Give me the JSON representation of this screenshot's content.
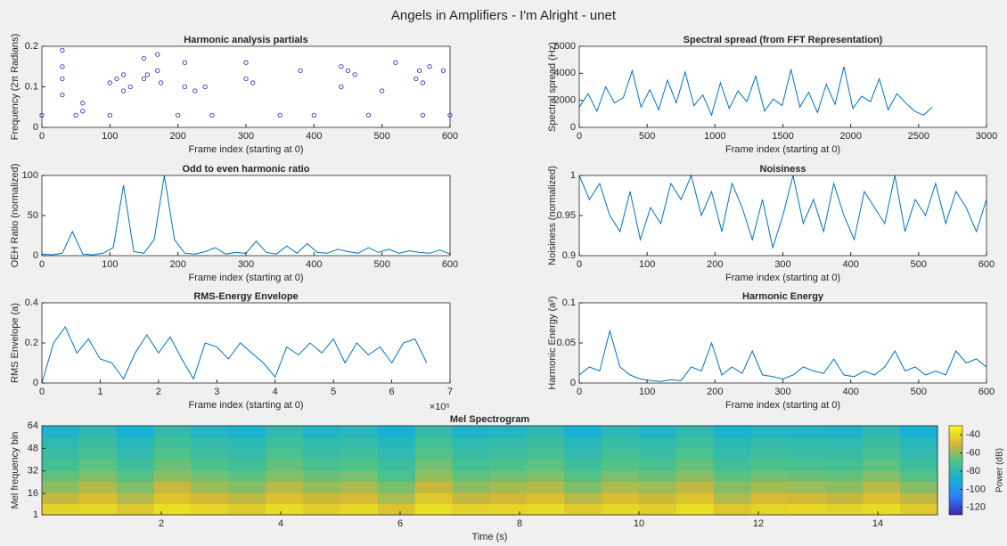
{
  "title": "Angels in Amplifiers - I'm Alright - unet",
  "chart_data": [
    {
      "type": "scatter",
      "title": "Harmonic analysis partials",
      "xlabel": "Frame index (starting at 0)",
      "ylabel": "Frequency (2π Radians)",
      "color": "#3d35c0",
      "x": [
        30,
        30,
        30,
        30,
        60,
        60,
        100,
        110,
        120,
        120,
        130,
        150,
        150,
        155,
        170,
        170,
        175,
        210,
        210,
        225,
        240,
        300,
        300,
        310,
        380,
        440,
        440,
        450,
        460,
        500,
        520,
        550,
        555,
        560,
        570,
        590,
        0,
        50,
        100,
        200,
        250,
        350,
        400,
        480,
        560,
        600
      ],
      "y": [
        0.19,
        0.15,
        0.12,
        0.08,
        0.06,
        0.04,
        0.11,
        0.12,
        0.13,
        0.09,
        0.1,
        0.17,
        0.12,
        0.13,
        0.18,
        0.14,
        0.11,
        0.16,
        0.1,
        0.09,
        0.1,
        0.16,
        0.12,
        0.11,
        0.14,
        0.15,
        0.1,
        0.14,
        0.13,
        0.09,
        0.16,
        0.12,
        0.14,
        0.11,
        0.15,
        0.14,
        0.03,
        0.03,
        0.03,
        0.03,
        0.03,
        0.03,
        0.03,
        0.03,
        0.03,
        0.03
      ],
      "xlim": [
        0,
        600
      ],
      "xticks": [
        0,
        100,
        200,
        300,
        400,
        500,
        600
      ],
      "ylim": [
        0,
        0.2
      ],
      "yticks": [
        0,
        0.1,
        0.2
      ]
    },
    {
      "type": "line",
      "title": "Spectral spread (from FFT Representation)",
      "xlabel": "Frame index (starting at 0)",
      "ylabel": "Spectral spread (Hz)",
      "color": "#0072bd",
      "x": [
        0,
        65,
        130,
        195,
        260,
        325,
        390,
        455,
        520,
        585,
        650,
        715,
        780,
        845,
        910,
        975,
        1040,
        1105,
        1170,
        1235,
        1300,
        1365,
        1430,
        1495,
        1560,
        1625,
        1690,
        1755,
        1820,
        1885,
        1950,
        2015,
        2080,
        2145,
        2210,
        2275,
        2340,
        2405,
        2470,
        2535,
        2600
      ],
      "values": [
        1500,
        2500,
        1200,
        3000,
        1800,
        2200,
        4200,
        1500,
        2800,
        1300,
        3500,
        1800,
        4100,
        1600,
        2400,
        900,
        3300,
        1400,
        2700,
        1900,
        3800,
        1200,
        2100,
        1600,
        4300,
        1500,
        2600,
        1100,
        3200,
        1700,
        4500,
        1400,
        2300,
        1900,
        3600,
        1300,
        2500,
        1800,
        1200,
        900,
        1500
      ],
      "xlim": [
        0,
        3000
      ],
      "xticks": [
        0,
        500,
        1000,
        1500,
        2000,
        2500,
        3000
      ],
      "ylim": [
        0,
        6000
      ],
      "yticks": [
        0,
        2000,
        4000,
        6000
      ]
    },
    {
      "type": "line",
      "title": "Odd to even harmonic ratio",
      "xlabel": "Frame index (starting at 0)",
      "ylabel": "OEH Ratio (normalized)",
      "color": "#0072bd",
      "x": [
        0,
        15,
        30,
        45,
        60,
        75,
        90,
        105,
        120,
        135,
        150,
        165,
        180,
        195,
        210,
        225,
        240,
        255,
        270,
        285,
        300,
        315,
        330,
        345,
        360,
        375,
        390,
        405,
        420,
        435,
        450,
        465,
        480,
        495,
        510,
        525,
        540,
        555,
        570,
        585,
        600
      ],
      "values": [
        2,
        1,
        3,
        30,
        2,
        1,
        3,
        10,
        88,
        5,
        3,
        20,
        100,
        20,
        3,
        2,
        5,
        10,
        2,
        4,
        3,
        18,
        4,
        2,
        12,
        3,
        15,
        4,
        3,
        8,
        5,
        3,
        10,
        4,
        8,
        3,
        6,
        4,
        3,
        7,
        2
      ],
      "xlim": [
        0,
        600
      ],
      "xticks": [
        0,
        100,
        200,
        300,
        400,
        500,
        600
      ],
      "ylim": [
        0,
        100
      ],
      "yticks": [
        0,
        50,
        100
      ]
    },
    {
      "type": "line",
      "title": "Noisiness",
      "xlabel": "Frame index (starting at 0)",
      "ylabel": "Noisiness (normalized)",
      "color": "#0072bd",
      "x": [
        0,
        15,
        30,
        45,
        60,
        75,
        90,
        105,
        120,
        135,
        150,
        165,
        180,
        195,
        210,
        225,
        240,
        255,
        270,
        285,
        300,
        315,
        330,
        345,
        360,
        375,
        390,
        405,
        420,
        435,
        450,
        465,
        480,
        495,
        510,
        525,
        540,
        555,
        570,
        585,
        600
      ],
      "values": [
        1,
        0.97,
        0.99,
        0.95,
        0.93,
        0.98,
        0.92,
        0.96,
        0.94,
        0.99,
        0.97,
        1,
        0.95,
        0.98,
        0.93,
        0.99,
        0.96,
        0.92,
        0.97,
        0.91,
        0.95,
        1,
        0.94,
        0.97,
        0.93,
        0.99,
        0.95,
        0.92,
        0.98,
        0.96,
        0.94,
        1,
        0.93,
        0.97,
        0.95,
        0.99,
        0.94,
        0.98,
        0.96,
        0.93,
        0.97
      ],
      "xlim": [
        0,
        600
      ],
      "xticks": [
        0,
        100,
        200,
        300,
        400,
        500,
        600
      ],
      "ylim": [
        0.9,
        1
      ],
      "yticks": [
        0.9,
        0.95,
        1
      ]
    },
    {
      "type": "line",
      "title": "RMS-Energy Envelope",
      "xlabel": "Frame index (starting at 0)",
      "ylabel": "RMS Envelope (a)",
      "x_multiplier": "×10⁵",
      "color": "#0072bd",
      "x": [
        0,
        0.2,
        0.4,
        0.6,
        0.8,
        1.0,
        1.2,
        1.4,
        1.6,
        1.8,
        2.0,
        2.2,
        2.4,
        2.6,
        2.8,
        3.0,
        3.2,
        3.4,
        3.6,
        3.8,
        4.0,
        4.2,
        4.4,
        4.6,
        4.8,
        5.0,
        5.2,
        5.4,
        5.6,
        5.8,
        6.0,
        6.2,
        6.4,
        6.6
      ],
      "values": [
        0,
        0.2,
        0.28,
        0.15,
        0.22,
        0.12,
        0.1,
        0.02,
        0.15,
        0.24,
        0.15,
        0.23,
        0.12,
        0.02,
        0.2,
        0.18,
        0.12,
        0.2,
        0.15,
        0.1,
        0.03,
        0.18,
        0.14,
        0.2,
        0.15,
        0.22,
        0.1,
        0.2,
        0.14,
        0.18,
        0.1,
        0.2,
        0.22,
        0.1
      ],
      "xlim": [
        0,
        7
      ],
      "xticks": [
        0,
        1,
        2,
        3,
        4,
        5,
        6,
        7
      ],
      "ylim": [
        0,
        0.4
      ],
      "yticks": [
        0,
        0.2,
        0.4
      ]
    },
    {
      "type": "line",
      "title": "Harmonic Energy",
      "xlabel": "Frame index (starting at 0)",
      "ylabel": "Harmonic Energy (a²)",
      "color": "#0072bd",
      "x": [
        0,
        15,
        30,
        45,
        60,
        75,
        90,
        105,
        120,
        135,
        150,
        165,
        180,
        195,
        210,
        225,
        240,
        255,
        270,
        285,
        300,
        315,
        330,
        345,
        360,
        375,
        390,
        405,
        420,
        435,
        450,
        465,
        480,
        495,
        510,
        525,
        540,
        555,
        570,
        585,
        600
      ],
      "values": [
        0.01,
        0.02,
        0.015,
        0.065,
        0.02,
        0.01,
        0.005,
        0.003,
        0.002,
        0.004,
        0.003,
        0.02,
        0.015,
        0.05,
        0.01,
        0.02,
        0.012,
        0.04,
        0.01,
        0.008,
        0.005,
        0.01,
        0.02,
        0.015,
        0.012,
        0.03,
        0.01,
        0.008,
        0.015,
        0.01,
        0.02,
        0.04,
        0.015,
        0.02,
        0.01,
        0.015,
        0.01,
        0.04,
        0.025,
        0.03,
        0.02
      ],
      "xlim": [
        0,
        600
      ],
      "xticks": [
        0,
        100,
        200,
        300,
        400,
        500,
        600
      ],
      "ylim": [
        0,
        0.1
      ],
      "yticks": [
        0,
        0.05,
        0.1
      ]
    },
    {
      "type": "heatmap",
      "title": "Mel Spectrogram",
      "xlabel": "Time (s)",
      "ylabel": "Mel frequency bin",
      "colormap": "parula",
      "clabel": "Power (dB)",
      "clim": [
        -128,
        -30
      ],
      "cticks": [
        -40,
        -60,
        -80,
        -100,
        -120
      ],
      "xlim": [
        0,
        15
      ],
      "xticks": [
        2,
        4,
        6,
        8,
        10,
        12,
        14
      ],
      "ylim": [
        1,
        64
      ],
      "yticks": [
        1,
        16,
        32,
        48,
        64
      ],
      "z": [
        [
          -42,
          -40,
          -45,
          -38,
          -41,
          -44,
          -39,
          -43,
          -40,
          -46,
          -38,
          -42,
          -41,
          -39,
          -44,
          -40,
          -43,
          -38,
          -45,
          -41,
          -40,
          -42,
          -39,
          -44
        ],
        [
          -52,
          -48,
          -55,
          -46,
          -50,
          -53,
          -47,
          -51,
          -49,
          -56,
          -45,
          -52,
          -50,
          -47,
          -54,
          -48,
          -51,
          -46,
          -55,
          -49,
          -50,
          -52,
          -47,
          -53
        ],
        [
          -60,
          -55,
          -62,
          -52,
          -58,
          -61,
          -54,
          -59,
          -56,
          -63,
          -52,
          -60,
          -57,
          -55,
          -62,
          -56,
          -58,
          -53,
          -61,
          -57,
          -58,
          -60,
          -54,
          -61
        ],
        [
          -66,
          -62,
          -68,
          -60,
          -64,
          -67,
          -61,
          -65,
          -63,
          -70,
          -59,
          -66,
          -64,
          -62,
          -68,
          -63,
          -65,
          -60,
          -67,
          -64,
          -65,
          -66,
          -61,
          -68
        ],
        [
          -72,
          -67,
          -74,
          -65,
          -70,
          -73,
          -66,
          -71,
          -69,
          -75,
          -64,
          -72,
          -70,
          -67,
          -74,
          -68,
          -71,
          -66,
          -73,
          -70,
          -71,
          -72,
          -67,
          -74
        ],
        [
          -76,
          -71,
          -78,
          -69,
          -74,
          -77,
          -70,
          -75,
          -73,
          -79,
          -68,
          -76,
          -74,
          -71,
          -78,
          -72,
          -75,
          -70,
          -77,
          -74,
          -75,
          -76,
          -71,
          -78
        ],
        [
          -80,
          -75,
          -82,
          -73,
          -78,
          -81,
          -74,
          -79,
          -77,
          -83,
          -72,
          -80,
          -78,
          -75,
          -82,
          -76,
          -79,
          -74,
          -81,
          -78,
          -79,
          -80,
          -75,
          -82
        ],
        [
          -86,
          -80,
          -88,
          -78,
          -84,
          -87,
          -79,
          -85,
          -82,
          -89,
          -77,
          -86,
          -84,
          -80,
          -88,
          -81,
          -85,
          -79,
          -87,
          -84,
          -85,
          -86,
          -80,
          -88
        ]
      ]
    }
  ]
}
